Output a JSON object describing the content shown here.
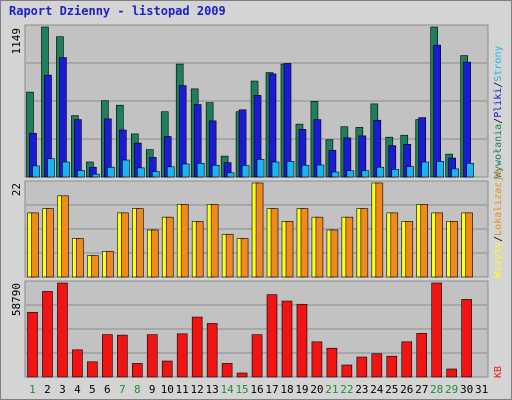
{
  "title": "Raport Dzienny -  listopad 2009",
  "colors": {
    "frame_bg": "#d4d4d4",
    "panel_bg": "#c2c2c2",
    "grid": "#8c8c8c",
    "visits": "#1e7f5c",
    "pages": "#1b1bd6",
    "files": "#1ab5f0",
    "hosts": "#f08a1e",
    "unique": "#ffff1a",
    "kb": "#f01414",
    "weekday": "#000000",
    "weekend": "#1e8f3c",
    "title": "#1c22c7"
  },
  "legend": {
    "top": [
      {
        "text": "Wywołania",
        "color": "#1e7f5c"
      },
      {
        "text": "/",
        "color": "#000000"
      },
      {
        "text": "Pliki",
        "color": "#1b1bd6"
      },
      {
        "text": "/",
        "color": "#000000"
      },
      {
        "text": "Strony",
        "color": "#1ab5f0"
      }
    ],
    "middle": [
      {
        "text": "Wizyty",
        "color": "#ffff1a"
      },
      {
        "text": "/",
        "color": "#000000"
      },
      {
        "text": "Lokalizacje",
        "color": "#f08a1e"
      }
    ],
    "bottom": [
      {
        "text": "KB",
        "color": "#f01414"
      }
    ]
  },
  "chart_data": [
    {
      "type": "bar",
      "panel": "top",
      "ymax_label": "1149",
      "ylim": [
        0,
        1149
      ],
      "categories": [
        "1",
        "2",
        "3",
        "4",
        "5",
        "6",
        "7",
        "8",
        "9",
        "10",
        "11",
        "12",
        "13",
        "14",
        "15",
        "16",
        "17",
        "18",
        "19",
        "20",
        "21",
        "22",
        "23",
        "24",
        "25",
        "26",
        "27",
        "28",
        "29",
        "30",
        "31"
      ],
      "weekend_days": [
        "1",
        "7",
        "8",
        "14",
        "15",
        "21",
        "22",
        "28",
        "29"
      ],
      "series": [
        {
          "name": "Wywołania",
          "values": [
            650,
            1149,
            1075,
            470,
            115,
            585,
            550,
            330,
            210,
            500,
            865,
            675,
            570,
            160,
            500,
            735,
            800,
            865,
            405,
            580,
            285,
            385,
            380,
            560,
            305,
            320,
            440,
            1149,
            175,
            930,
            null
          ]
        },
        {
          "name": "Pliki",
          "values": [
            335,
            780,
            915,
            440,
            75,
            445,
            360,
            260,
            150,
            310,
            700,
            555,
            430,
            110,
            515,
            625,
            790,
            870,
            365,
            440,
            205,
            300,
            315,
            435,
            240,
            250,
            455,
            1010,
            145,
            880,
            null
          ]
        },
        {
          "name": "Strony",
          "values": [
            85,
            140,
            115,
            50,
            22,
            75,
            130,
            70,
            42,
            78,
            100,
            105,
            90,
            32,
            88,
            135,
            115,
            120,
            90,
            92,
            38,
            48,
            48,
            75,
            58,
            80,
            115,
            120,
            62,
            105,
            null
          ]
        }
      ]
    },
    {
      "type": "bar",
      "panel": "middle",
      "ymax_label": "22",
      "ylim": [
        0,
        22
      ],
      "categories": [
        "1",
        "2",
        "3",
        "4",
        "5",
        "6",
        "7",
        "8",
        "9",
        "10",
        "11",
        "12",
        "13",
        "14",
        "15",
        "16",
        "17",
        "18",
        "19",
        "20",
        "21",
        "22",
        "23",
        "24",
        "25",
        "26",
        "27",
        "28",
        "29",
        "30",
        "31"
      ],
      "series": [
        {
          "name": "Wizyty",
          "values": [
            15,
            16,
            19,
            9,
            5,
            6,
            15,
            16,
            11,
            14,
            17,
            13,
            17,
            10,
            9,
            22,
            16,
            13,
            16,
            14,
            11,
            14,
            16,
            22,
            15,
            13,
            17,
            15,
            13,
            15,
            null
          ]
        },
        {
          "name": "Lokalizacje",
          "values": [
            15,
            16,
            19,
            9,
            5,
            6,
            15,
            16,
            11,
            14,
            17,
            13,
            17,
            10,
            9,
            22,
            16,
            13,
            16,
            14,
            11,
            14,
            16,
            22,
            15,
            13,
            17,
            15,
            13,
            15,
            null
          ]
        }
      ]
    },
    {
      "type": "bar",
      "panel": "bottom",
      "ymax_label": "58790",
      "ylim": [
        0,
        58790
      ],
      "categories": [
        "1",
        "2",
        "3",
        "4",
        "5",
        "6",
        "7",
        "8",
        "9",
        "10",
        "11",
        "12",
        "13",
        "14",
        "15",
        "16",
        "17",
        "18",
        "19",
        "20",
        "21",
        "22",
        "23",
        "24",
        "25",
        "26",
        "27",
        "28",
        "29",
        "30",
        "31"
      ],
      "series": [
        {
          "name": "KB",
          "values": [
            40500,
            53500,
            58790,
            17000,
            9500,
            26500,
            26200,
            8500,
            26500,
            10000,
            27000,
            37500,
            33500,
            8500,
            2500,
            26500,
            51500,
            47500,
            45500,
            22000,
            18000,
            7500,
            12500,
            14500,
            13000,
            22000,
            27300,
            58790,
            5000,
            48500,
            null
          ]
        }
      ]
    }
  ]
}
